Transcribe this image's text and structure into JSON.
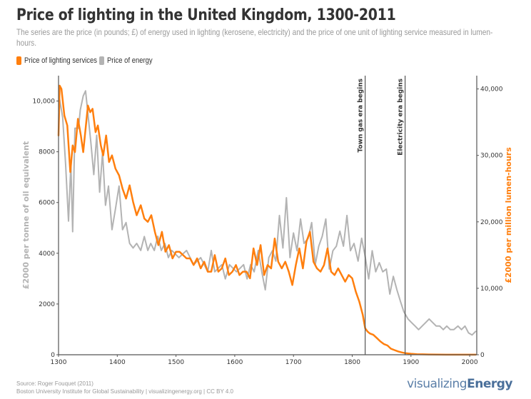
{
  "header": {
    "title": "Price of lighting in the United Kingdom, 1300-2011",
    "subtitle": "The series are the price (in pounds; £) of energy used in lighting (kerosene, electricity) and the price of one unit of lighting service measured in lumen-hours."
  },
  "legend": [
    {
      "label": "Price of lighting services",
      "color": "#ff7f0e"
    },
    {
      "label": "Price of energy",
      "color": "#b3b3b3"
    }
  ],
  "footer": {
    "source": "Source: Roger Fouquet (2011)",
    "credit": "Boston University Institute for Global Sustainability | visualizingenergy.org | CC BY 4.0",
    "logo_light": "visualizing",
    "logo_bold": "Energy"
  },
  "chart_data": {
    "type": "line",
    "title": "Price of lighting in the United Kingdom, 1300-2011",
    "xlabel": "",
    "ylabel_left": "£2000 per tonne of oil equivalent",
    "ylabel_right": "£2000 per million lumen-hours",
    "xlim": [
      1300,
      2012
    ],
    "ylim_left": [
      0,
      11000
    ],
    "ylim_right": [
      0,
      42000
    ],
    "x_ticks": [
      1300,
      1400,
      1500,
      1600,
      1700,
      1800,
      1900,
      2000
    ],
    "y_ticks_left": [
      0,
      2000,
      4000,
      6000,
      8000,
      10000
    ],
    "y_tick_labels_left": [
      "0",
      "2000",
      "4000",
      "6000",
      "8000",
      "10,000"
    ],
    "y_ticks_right": [
      0,
      10000,
      20000,
      30000,
      40000
    ],
    "y_tick_labels_right": [
      "0",
      "10,000",
      "20,000",
      "30,000",
      "40,000"
    ],
    "grid": false,
    "legend_position": "top-left",
    "colors": {
      "lighting": "#ff7f0e",
      "energy": "#b3b3b3",
      "left_axis_title": "#b3b3b3",
      "right_axis_title": "#ff7f0e"
    },
    "annotations": [
      {
        "x": 1822,
        "label": "Town gas era begins"
      },
      {
        "x": 1890,
        "label": "Electricity era begins"
      }
    ],
    "series": [
      {
        "name": "Price of energy",
        "axis": "left",
        "x": [
          1300,
          1302,
          1307,
          1312,
          1317,
          1321,
          1324,
          1328,
          1334,
          1337,
          1342,
          1346,
          1350,
          1355,
          1360,
          1365,
          1370,
          1375,
          1380,
          1385,
          1391,
          1397,
          1403,
          1409,
          1415,
          1421,
          1427,
          1433,
          1440,
          1446,
          1452,
          1457,
          1463,
          1469,
          1475,
          1481,
          1487,
          1493,
          1505,
          1518,
          1530,
          1542,
          1554,
          1560,
          1566,
          1578,
          1584,
          1591,
          1603,
          1615,
          1621,
          1627,
          1633,
          1640,
          1646,
          1652,
          1658,
          1664,
          1670,
          1676,
          1682,
          1688,
          1694,
          1700,
          1706,
          1712,
          1718,
          1725,
          1731,
          1737,
          1743,
          1749,
          1755,
          1761,
          1767,
          1773,
          1779,
          1785,
          1791,
          1797,
          1803,
          1810,
          1816,
          1822,
          1828,
          1834,
          1840,
          1846,
          1852,
          1858,
          1864,
          1870,
          1876,
          1882,
          1888,
          1895,
          1901,
          1907,
          1913,
          1919,
          1925,
          1931,
          1937,
          1943,
          1949,
          1955,
          1961,
          1967,
          1973,
          1980,
          1986,
          1992,
          1998,
          2004,
          2010
        ],
        "values": [
          8800,
          10060,
          9350,
          7520,
          5270,
          7520,
          4850,
          8930,
          8930,
          9650,
          10200,
          10400,
          9500,
          8370,
          7100,
          8650,
          6410,
          7970,
          5890,
          6650,
          4930,
          5750,
          6650,
          4930,
          5210,
          4390,
          4210,
          4390,
          4110,
          4660,
          4110,
          4390,
          4110,
          4670,
          4110,
          4390,
          3830,
          4110,
          3830,
          4110,
          3550,
          3830,
          3270,
          4110,
          3270,
          3550,
          2990,
          3550,
          3270,
          3550,
          2990,
          3550,
          3270,
          4110,
          3270,
          2560,
          3830,
          4100,
          3690,
          5490,
          4210,
          6190,
          3830,
          4800,
          4100,
          5350,
          4390,
          4590,
          5210,
          3550,
          4280,
          4670,
          5350,
          3380,
          4100,
          4280,
          4870,
          4280,
          5490,
          4100,
          4390,
          3690,
          4590,
          3880,
          2990,
          4100,
          3270,
          3630,
          3270,
          3380,
          2390,
          3090,
          2560,
          2110,
          1690,
          1410,
          1270,
          1130,
          990,
          1130,
          1270,
          1410,
          1270,
          1130,
          1130,
          990,
          1130,
          990,
          990,
          1130,
          990,
          1130,
          860,
          780,
          920
        ]
      },
      {
        "name": "Price of lighting services",
        "axis": "right",
        "x": [
          1300,
          1302,
          1305,
          1310,
          1315,
          1320,
          1324,
          1328,
          1333,
          1338,
          1342,
          1346,
          1350,
          1354,
          1358,
          1363,
          1367,
          1372,
          1376,
          1381,
          1386,
          1391,
          1397,
          1403,
          1409,
          1415,
          1421,
          1427,
          1433,
          1440,
          1446,
          1452,
          1458,
          1464,
          1470,
          1476,
          1482,
          1488,
          1494,
          1500,
          1506,
          1512,
          1518,
          1524,
          1530,
          1536,
          1542,
          1548,
          1554,
          1560,
          1566,
          1572,
          1578,
          1584,
          1590,
          1596,
          1602,
          1608,
          1614,
          1620,
          1626,
          1632,
          1638,
          1644,
          1650,
          1656,
          1662,
          1668,
          1674,
          1680,
          1686,
          1692,
          1698,
          1704,
          1710,
          1716,
          1722,
          1728,
          1734,
          1740,
          1746,
          1752,
          1758,
          1764,
          1770,
          1776,
          1782,
          1788,
          1794,
          1800,
          1806,
          1812,
          1818,
          1822,
          1826,
          1830,
          1836,
          1842,
          1848,
          1854,
          1860,
          1866,
          1872,
          1878,
          1884,
          1890,
          1900,
          1910,
          1920,
          1930,
          1945,
          1960,
          1980,
          2000,
          2010
        ],
        "values": [
          33000,
          40500,
          40000,
          36000,
          34500,
          27500,
          31500,
          30500,
          35500,
          33000,
          30500,
          34000,
          37500,
          36500,
          37000,
          33500,
          34500,
          31500,
          30000,
          33000,
          29000,
          30000,
          28000,
          27000,
          25000,
          23500,
          25500,
          23000,
          21000,
          22500,
          20500,
          20000,
          21000,
          18500,
          16500,
          18500,
          15500,
          16500,
          14500,
          15500,
          15500,
          15000,
          14500,
          14500,
          13500,
          14500,
          13000,
          14000,
          12500,
          12500,
          15000,
          12500,
          13000,
          14500,
          12000,
          12500,
          13500,
          12000,
          12500,
          12500,
          11500,
          16000,
          13500,
          16500,
          12000,
          13500,
          13000,
          17500,
          14000,
          13000,
          14000,
          12500,
          10500,
          13500,
          16000,
          13000,
          17000,
          18500,
          14000,
          13000,
          12500,
          13500,
          16000,
          12500,
          12000,
          13000,
          12000,
          11000,
          12000,
          11500,
          9500,
          8000,
          6000,
          4000,
          3500,
          3200,
          3000,
          2500,
          2000,
          1600,
          1400,
          900,
          700,
          500,
          350,
          250,
          150,
          90,
          60,
          40,
          25,
          15,
          10,
          8,
          8
        ]
      }
    ]
  }
}
